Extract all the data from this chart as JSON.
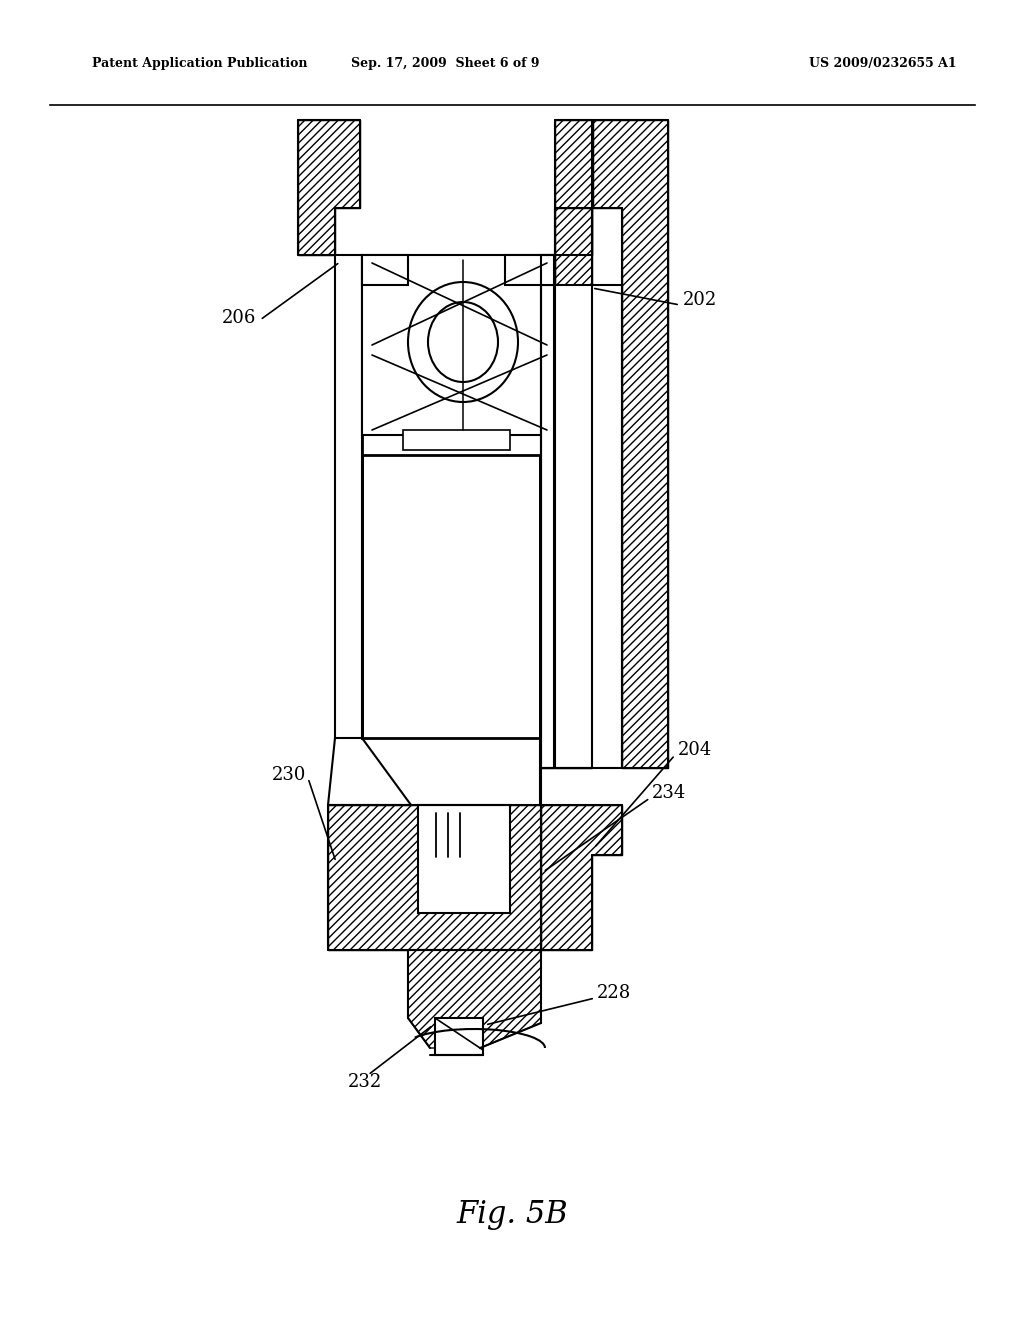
{
  "background_color": "#ffffff",
  "line_color": "#000000",
  "fig_width": 10.24,
  "fig_height": 13.2,
  "header_left": "Patent Application Publication",
  "header_center": "Sep. 17, 2009  Sheet 6 of 9",
  "header_right": "US 2009/0232655 A1",
  "figure_label": "Fig. 5B",
  "lw": 1.5,
  "lw2": 2.0,
  "hatch_density": "////"
}
